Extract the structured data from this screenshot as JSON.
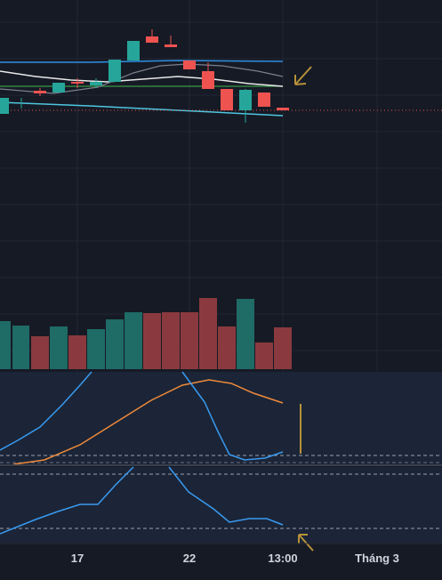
{
  "x_axis": {
    "labels": [
      "17",
      "22",
      "13:00",
      "Tháng 3"
    ]
  }
}
